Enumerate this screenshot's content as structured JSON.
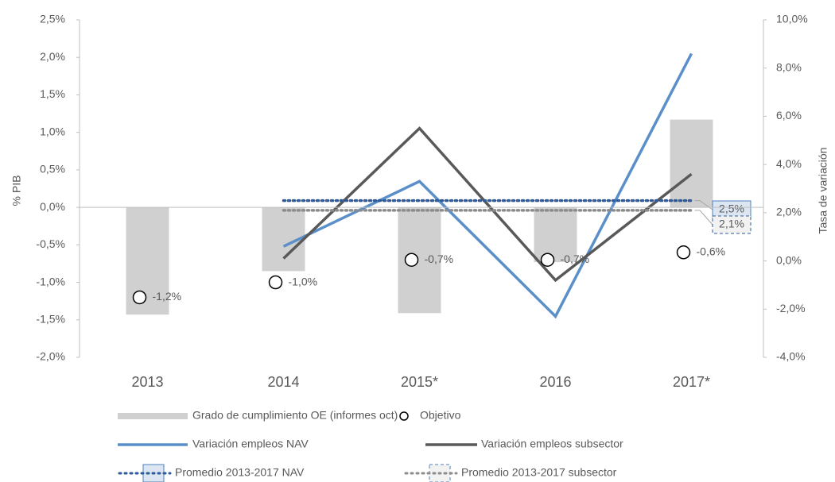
{
  "chart_data": {
    "type": "combo",
    "y_label": "% PIB",
    "y2_label": "Tasa de variación",
    "categories": [
      "2013",
      "2014",
      "2015*",
      "2016",
      "2017*"
    ],
    "ylim": [
      -2.0,
      2.5
    ],
    "yticks": [
      {
        "value": -2.0,
        "label": "-2,0%"
      },
      {
        "value": -1.5,
        "label": "-1,5%"
      },
      {
        "value": -1.0,
        "label": "-1,0%"
      },
      {
        "value": -0.5,
        "label": "-0,5%"
      },
      {
        "value": 0.0,
        "label": "0,0%"
      },
      {
        "value": 0.5,
        "label": "0,5%"
      },
      {
        "value": 1.0,
        "label": "1,0%"
      },
      {
        "value": 1.5,
        "label": "1,5%"
      },
      {
        "value": 2.0,
        "label": "2,0%"
      },
      {
        "value": 2.5,
        "label": "2,5%"
      }
    ],
    "y2lim": [
      -4.0,
      10.0
    ],
    "y2ticks": [
      {
        "value": -4.0,
        "label": "-4,0%"
      },
      {
        "value": -2.0,
        "label": "-2,0%"
      },
      {
        "value": 0.0,
        "label": "0,0%"
      },
      {
        "value": 2.0,
        "label": "2,0%"
      },
      {
        "value": 4.0,
        "label": "4,0%"
      },
      {
        "value": 6.0,
        "label": "6,0%"
      },
      {
        "value": 8.0,
        "label": "8,0%"
      },
      {
        "value": 10.0,
        "label": "10,0%"
      }
    ],
    "series": [
      {
        "name": "Grado de cumplimiento OE (informes oct)",
        "type": "bar",
        "color": "#d0d0d0",
        "values": [
          -1.43,
          -0.85,
          -1.41,
          -0.73,
          1.17
        ]
      },
      {
        "name": "Objetivo",
        "type": "scatter",
        "color": "#000000",
        "values": [
          -1.2,
          -1.0,
          -0.7,
          -0.7,
          -0.6
        ],
        "value_labels": [
          "-1,2%",
          "-1,0%",
          "-0,7%",
          "-0,7%",
          "-0,6%"
        ]
      },
      {
        "name": "Variación empleos NAV",
        "type": "line",
        "axis": "y2",
        "color": "#5b8fc9",
        "values": [
          null,
          0.6,
          3.3,
          -2.3,
          8.6
        ]
      },
      {
        "name": "Variación empleos subsector",
        "type": "line",
        "axis": "y2",
        "color": "#595959",
        "values": [
          null,
          0.1,
          5.5,
          -0.8,
          3.6
        ]
      },
      {
        "name": "Promedio 2013-2017 NAV",
        "type": "average",
        "axis": "y2",
        "color": "#2e5c9a",
        "box": "#dce6f2",
        "value": 2.5,
        "value_label": "2,5%"
      },
      {
        "name": "Promedio 2013-2017 subsector",
        "type": "average",
        "axis": "y2",
        "color": "#8c8c8c",
        "box": "#f2f2f2",
        "value": 2.1,
        "value_label": "2,1%"
      }
    ]
  }
}
